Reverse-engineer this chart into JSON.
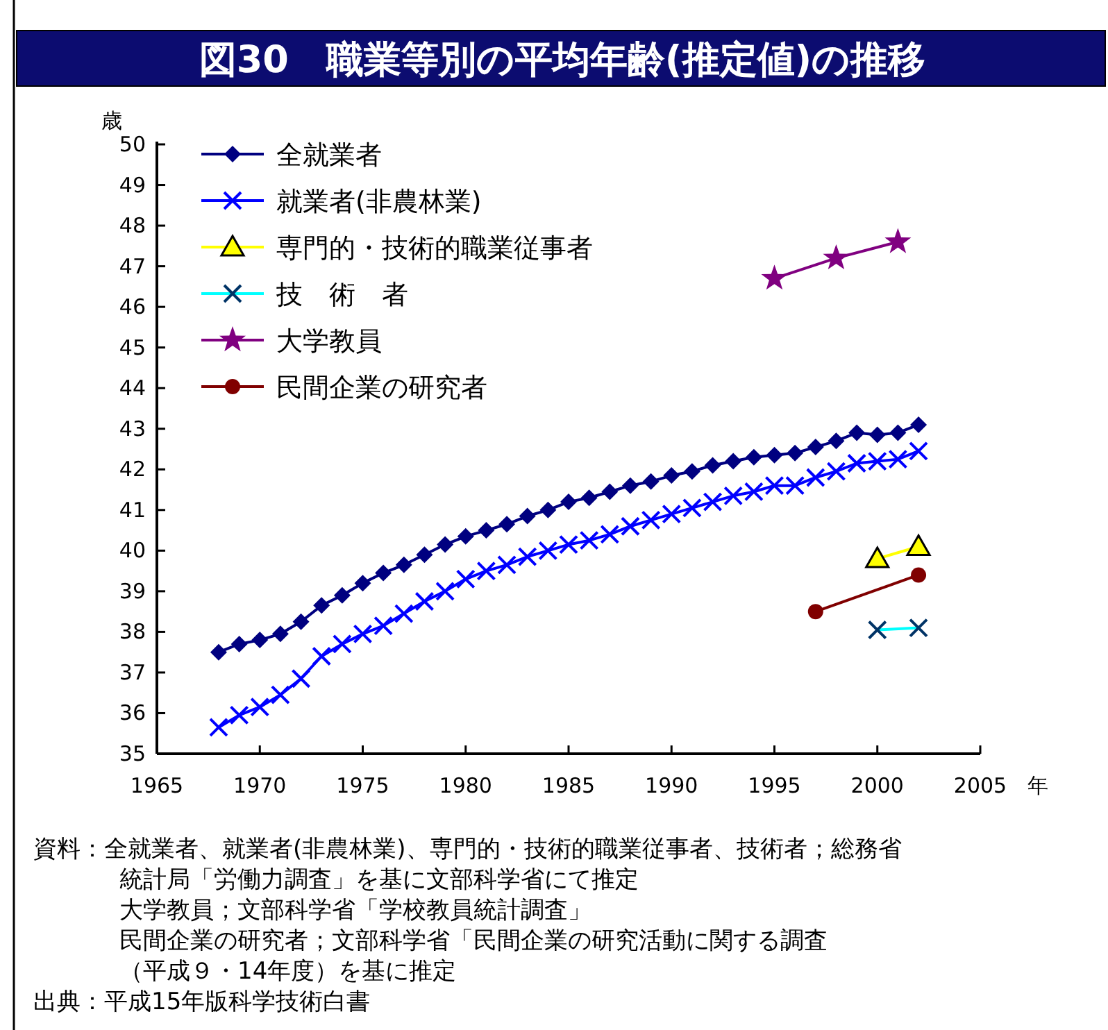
{
  "chart_data": {
    "type": "line",
    "title": "図30　職業等別の平均年齢(推定値)の推移",
    "xlabel": "年",
    "ylabel": "歳",
    "xlim": [
      1965,
      2005
    ],
    "xticks": [
      1965,
      1970,
      1975,
      1980,
      1985,
      1990,
      1995,
      2000,
      2005
    ],
    "ylim": [
      35,
      50
    ],
    "yticks": [
      35,
      36,
      37,
      38,
      39,
      40,
      41,
      42,
      43,
      44,
      45,
      46,
      47,
      48,
      49,
      50
    ],
    "grid": false,
    "legend": "top left",
    "series": [
      {
        "name": "全就業者",
        "color": "#000080",
        "marker": "diamond",
        "x": [
          1968,
          1969,
          1970,
          1971,
          1972,
          1973,
          1974,
          1975,
          1976,
          1977,
          1978,
          1979,
          1980,
          1981,
          1982,
          1983,
          1984,
          1985,
          1986,
          1987,
          1988,
          1989,
          1990,
          1991,
          1992,
          1993,
          1994,
          1995,
          1996,
          1997,
          1998,
          1999,
          2000,
          2001,
          2002
        ],
        "values": [
          37.5,
          37.7,
          37.8,
          37.95,
          38.25,
          38.65,
          38.9,
          39.2,
          39.45,
          39.65,
          39.9,
          40.15,
          40.35,
          40.5,
          40.65,
          40.85,
          41.0,
          41.2,
          41.3,
          41.45,
          41.6,
          41.7,
          41.85,
          41.95,
          42.1,
          42.2,
          42.3,
          42.35,
          42.4,
          42.55,
          42.7,
          42.9,
          42.85,
          42.9,
          43.1
        ]
      },
      {
        "name": "就業者(非農林業)",
        "color": "#0000ff",
        "marker": "cross",
        "x": [
          1968,
          1969,
          1970,
          1971,
          1972,
          1973,
          1974,
          1975,
          1976,
          1977,
          1978,
          1979,
          1980,
          1981,
          1982,
          1983,
          1984,
          1985,
          1986,
          1987,
          1988,
          1989,
          1990,
          1991,
          1992,
          1993,
          1994,
          1995,
          1996,
          1997,
          1998,
          1999,
          2000,
          2001,
          2002
        ],
        "values": [
          35.65,
          35.95,
          36.15,
          36.45,
          36.85,
          37.4,
          37.7,
          37.95,
          38.15,
          38.45,
          38.75,
          39.0,
          39.3,
          39.5,
          39.65,
          39.85,
          40.0,
          40.15,
          40.25,
          40.4,
          40.6,
          40.75,
          40.9,
          41.05,
          41.2,
          41.35,
          41.45,
          41.6,
          41.6,
          41.8,
          41.95,
          42.15,
          42.2,
          42.25,
          42.45
        ]
      },
      {
        "name": "専門的・技術的職業従事者",
        "color": "#ffff00",
        "marker": "triangle",
        "x": [
          2000,
          2002
        ],
        "values": [
          39.8,
          40.1
        ]
      },
      {
        "name": "技　術　者",
        "color": "#00ffff",
        "marker": "cross",
        "x": [
          2000,
          2002
        ],
        "values": [
          38.05,
          38.1
        ]
      },
      {
        "name": "大学教員",
        "color": "#800080",
        "marker": "star",
        "x": [
          1995,
          1998,
          2001
        ],
        "values": [
          46.7,
          47.2,
          47.6
        ]
      },
      {
        "name": "民間企業の研究者",
        "color": "#800000",
        "marker": "circle",
        "x": [
          1997,
          2002
        ],
        "values": [
          38.5,
          39.4
        ]
      }
    ],
    "annotations": [
      "資料：全就業者、就業者(非農林業)、専門的・技術的職業従事者、技術者；総務省",
      "統計局「労働力調査」を基に文部科学省にて推定",
      "大学教員；文部科学省「学校教員統計調査」",
      "民間企業の研究者；文部科学省「民間企業の研究活動に関する調査",
      "（平成９・14年度）を基に推定",
      "出典：平成15年版科学技術白書"
    ]
  }
}
